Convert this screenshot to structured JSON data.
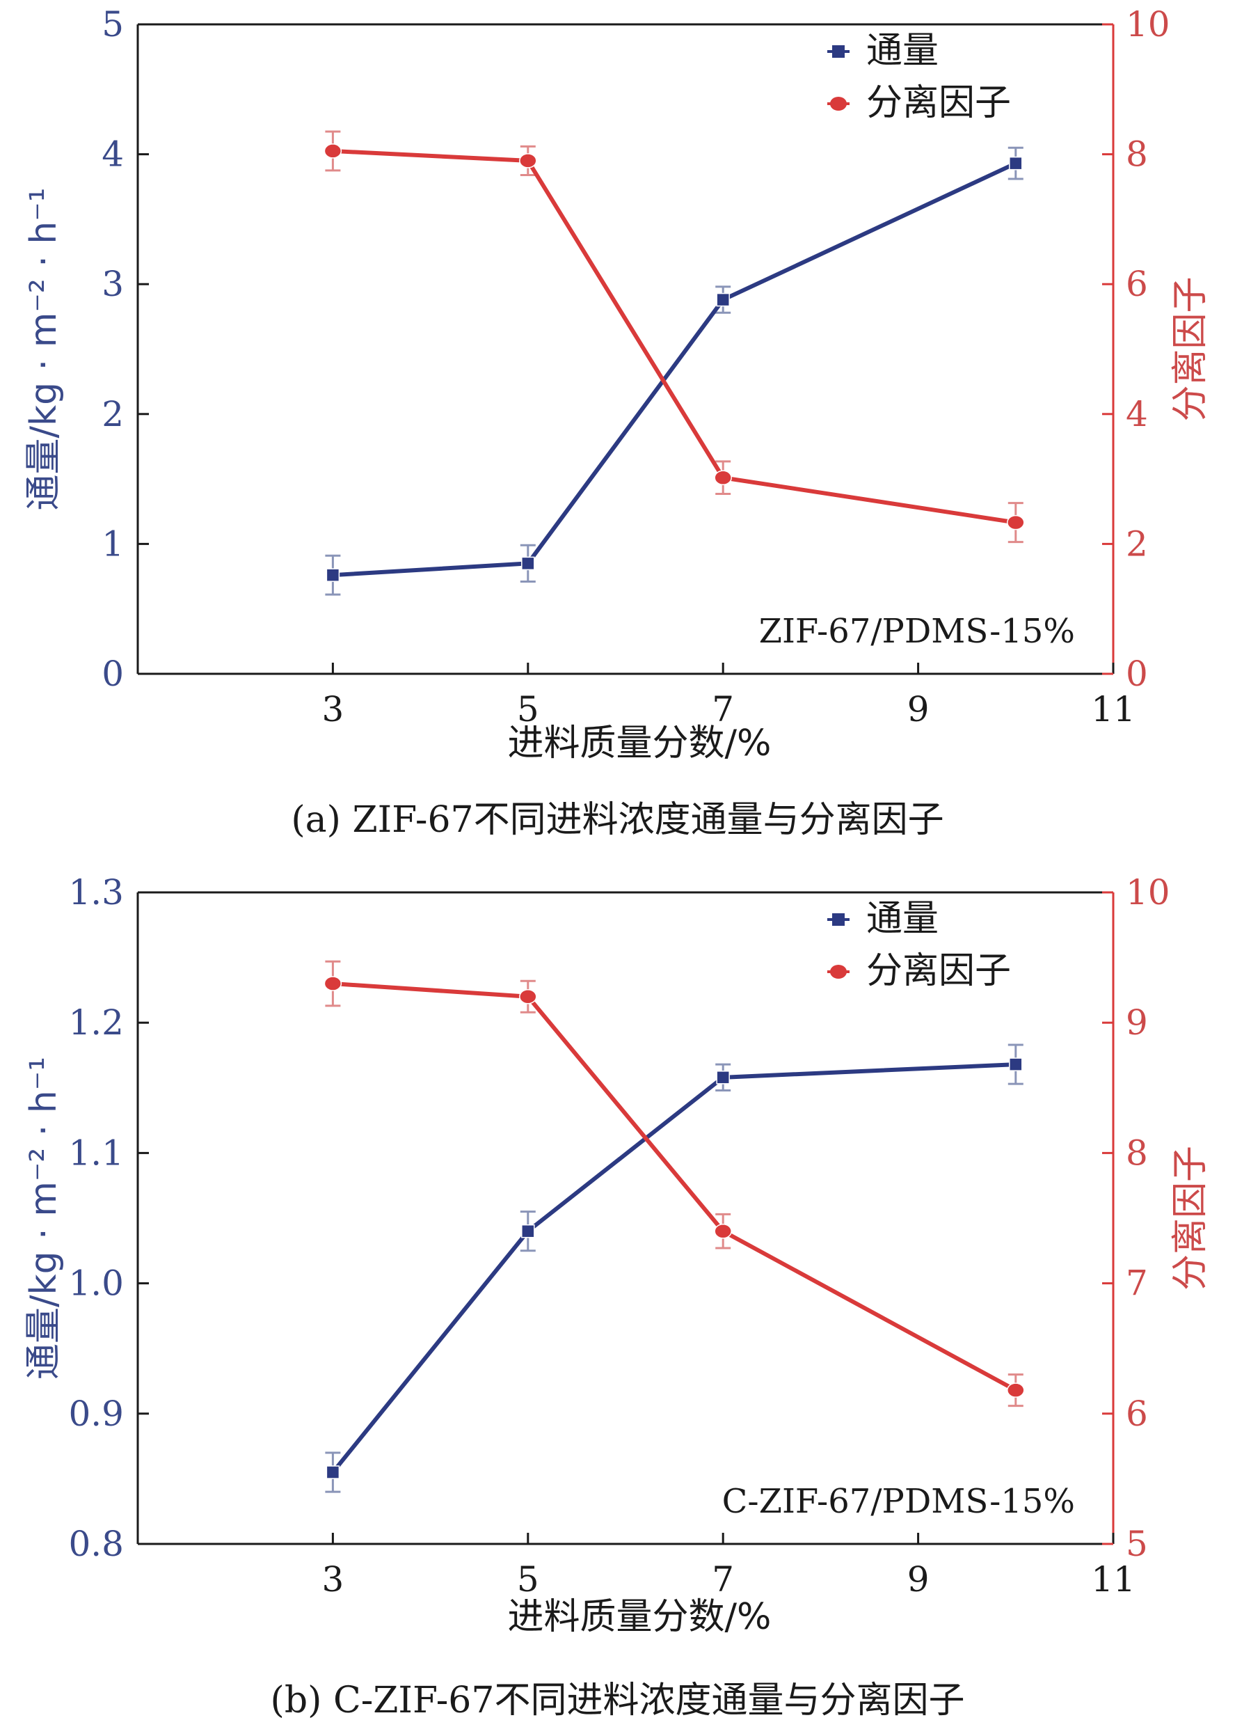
{
  "colors": {
    "flux": "#2c3a82",
    "sep": "#d93a3a",
    "axis_left": "#3a4a8a",
    "axis_right": "#cc4a4a",
    "text": "#1a1a1a"
  },
  "chart_data": [
    {
      "type": "line",
      "panel": "a",
      "caption": "(a) ZIF-67不同进料浓度通量与分离因子",
      "xlabel": "进料质量分数/%",
      "ylabel": "通量/kg · m⁻² · h⁻¹",
      "y2label": "分离因子",
      "annotation": "ZIF-67/PDMS-15%",
      "xlim": [
        1,
        11
      ],
      "xticks": [
        3,
        5,
        7,
        9,
        11
      ],
      "ylim": [
        0,
        5
      ],
      "yticks": [
        0,
        1,
        2,
        3,
        4,
        5
      ],
      "y2lim": [
        0,
        10
      ],
      "y2ticks": [
        0,
        2,
        4,
        6,
        8,
        10
      ],
      "legend": [
        "通量",
        "分离因子"
      ],
      "legend_position": "top-right",
      "x": [
        3,
        5,
        7,
        10
      ],
      "series": [
        {
          "name": "通量",
          "axis": "left",
          "values": [
            0.76,
            0.85,
            2.88,
            3.93
          ],
          "errors": [
            0.15,
            0.14,
            0.1,
            0.12
          ]
        },
        {
          "name": "分离因子",
          "axis": "right",
          "values": [
            8.05,
            7.9,
            3.02,
            2.33
          ],
          "errors": [
            0.3,
            0.22,
            0.25,
            0.3
          ]
        }
      ]
    },
    {
      "type": "line",
      "panel": "b",
      "caption": "(b) C-ZIF-67不同进料浓度通量与分离因子",
      "xlabel": "进料质量分数/%",
      "ylabel": "通量/kg · m⁻² · h⁻¹",
      "y2label": "分离因子",
      "annotation": "C-ZIF-67/PDMS-15%",
      "xlim": [
        1,
        11
      ],
      "xticks": [
        3,
        5,
        7,
        9,
        11
      ],
      "ylim": [
        0.8,
        1.3
      ],
      "yticks": [
        "0.8",
        "0.9",
        "1.0",
        "1.1",
        "1.2",
        "1.3"
      ],
      "y2lim": [
        5,
        10
      ],
      "y2ticks": [
        5,
        6,
        7,
        8,
        9,
        10
      ],
      "legend": [
        "通量",
        "分离因子"
      ],
      "legend_position": "top-right",
      "x": [
        3,
        5,
        7,
        10
      ],
      "series": [
        {
          "name": "通量",
          "axis": "left",
          "values": [
            0.855,
            1.04,
            1.158,
            1.168
          ],
          "errors": [
            0.015,
            0.015,
            0.01,
            0.015
          ]
        },
        {
          "name": "分离因子",
          "axis": "right",
          "values": [
            9.3,
            9.2,
            7.4,
            6.18
          ],
          "errors": [
            0.17,
            0.12,
            0.13,
            0.12
          ]
        }
      ]
    }
  ]
}
